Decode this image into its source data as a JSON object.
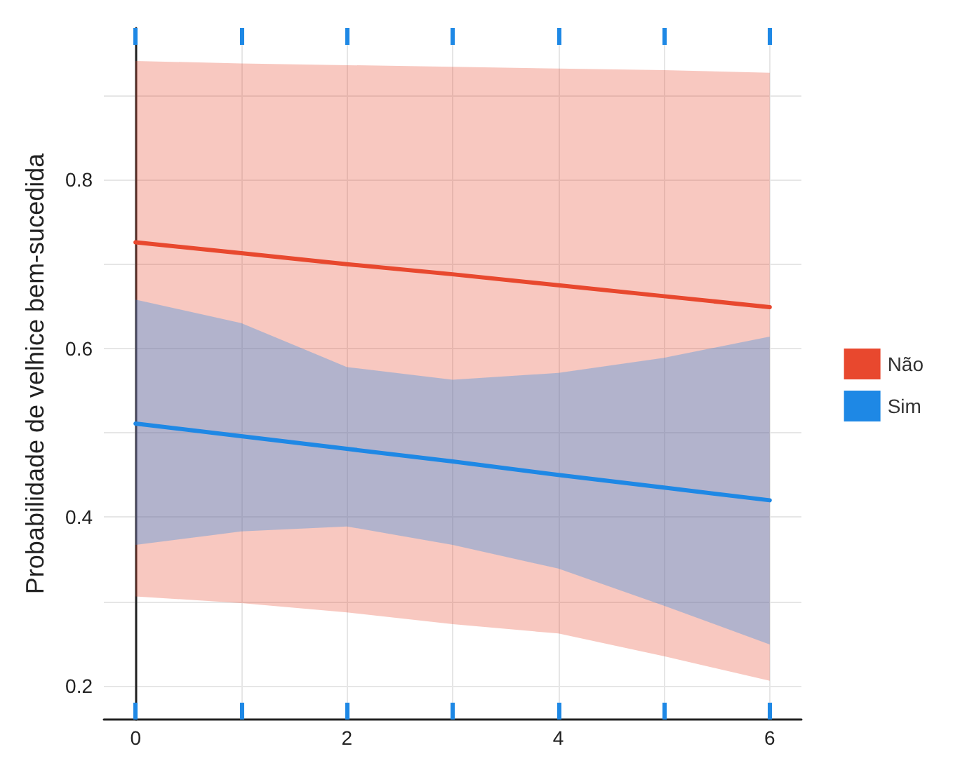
{
  "chart_data": {
    "type": "line",
    "ylabel": "Probabilidade de velhice bem-sucedida",
    "x": [
      0,
      1,
      2,
      3,
      4,
      5,
      6
    ],
    "series": [
      {
        "name": "Não",
        "color": "#e8482e",
        "values": [
          0.726,
          0.713,
          0.7,
          0.688,
          0.675,
          0.662,
          0.649
        ],
        "lower": [
          0.306,
          0.298,
          0.287,
          0.273,
          0.262,
          0.235,
          0.206
        ],
        "upper": [
          0.941,
          0.938,
          0.936,
          0.934,
          0.932,
          0.93,
          0.927
        ]
      },
      {
        "name": "Sim",
        "color": "#1e88e5",
        "values": [
          0.511,
          0.496,
          0.481,
          0.466,
          0.45,
          0.435,
          0.42
        ],
        "lower": [
          0.367,
          0.383,
          0.389,
          0.367,
          0.339,
          0.295,
          0.249
        ],
        "upper": [
          0.658,
          0.63,
          0.578,
          0.563,
          0.571,
          0.589,
          0.614
        ]
      }
    ],
    "xlim": [
      -0.3,
      6.3
    ],
    "xticks": [
      0,
      {
        "value": 1,
        "label": null
      },
      2,
      {
        "value": 3,
        "label": null
      },
      4,
      {
        "value": 5,
        "label": null
      },
      6
    ],
    "ylim": [
      0.16,
      0.98
    ],
    "yticks": [
      0.2,
      {
        "value": 0.3,
        "label": null
      },
      0.4,
      {
        "value": 0.5,
        "label": null
      },
      0.6,
      {
        "value": 0.7,
        "label": null
      },
      0.8,
      {
        "value": 0.9,
        "label": null
      }
    ],
    "grid": true,
    "legend": "right",
    "marker": "none",
    "line_style": "solid"
  }
}
